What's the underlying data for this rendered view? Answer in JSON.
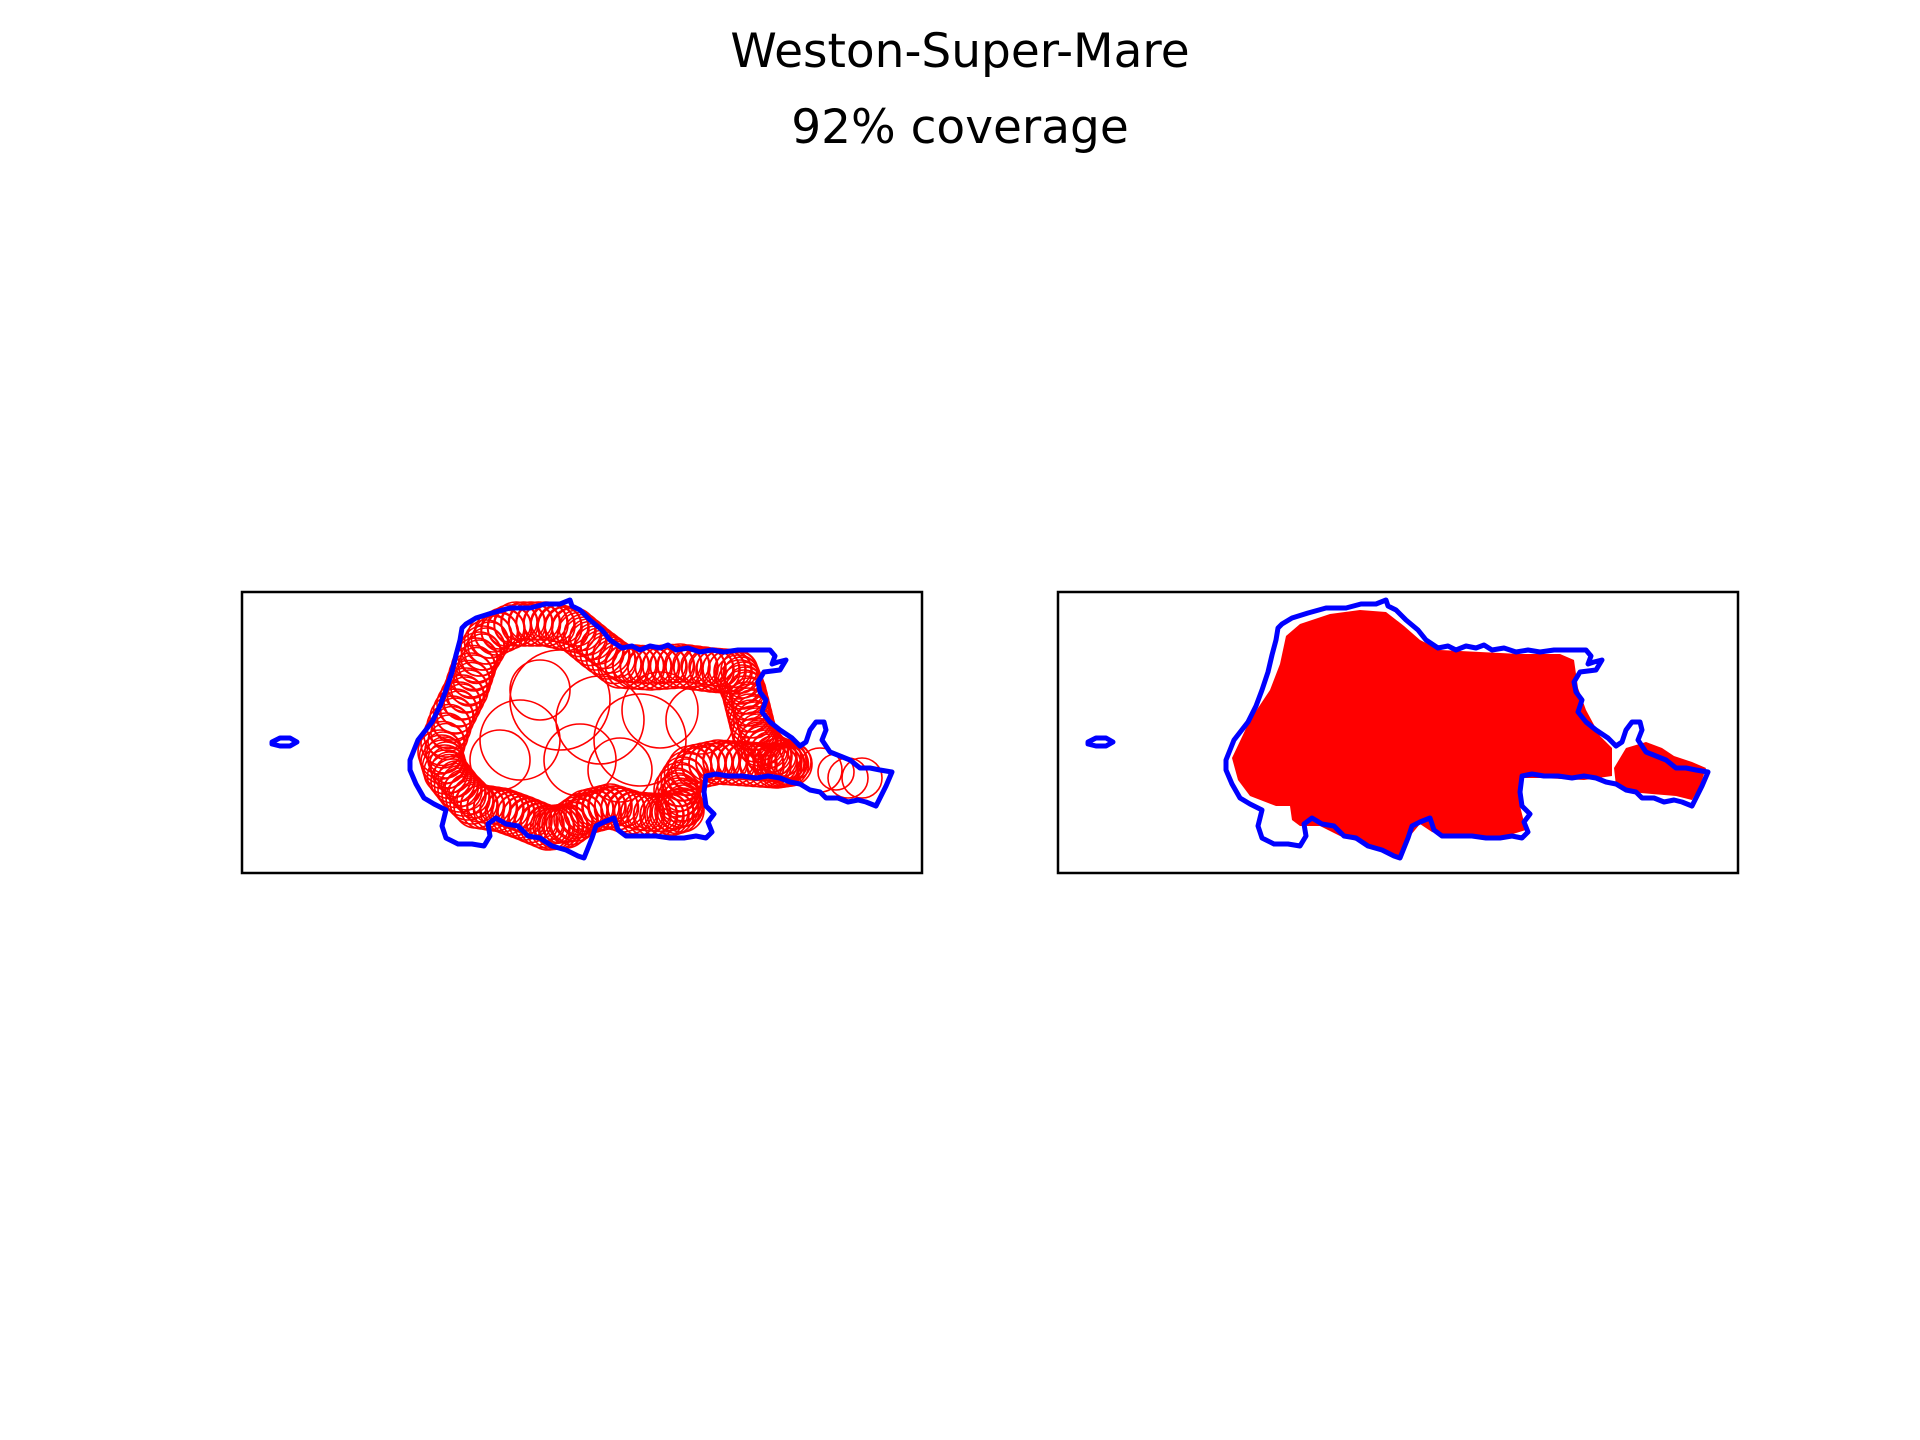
{
  "figure": {
    "title": "Weston-Super-Mare",
    "subtitle": "92% coverage"
  },
  "colors": {
    "boundary": "#0000ff",
    "coverage": "#ff0000",
    "frame": "#000000",
    "background": "#ffffff"
  },
  "panels": [
    {
      "id": "circles",
      "style": "outline"
    },
    {
      "id": "coverage",
      "style": "filled"
    }
  ]
}
